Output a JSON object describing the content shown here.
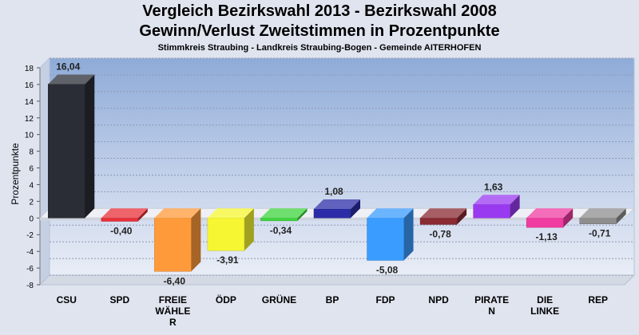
{
  "chart_data": {
    "type": "bar",
    "title": "Vergleich Bezirkswahl 2013 - Bezirkswahl 2008",
    "subtitle": "Gewinn/Verlust Zweitstimmen in Prozentpunkte",
    "caption": "Stimmkreis Straubing - Landkreis Straubing-Bogen - Gemeinde AITERHOFEN",
    "ylabel": "Prozentpunkte",
    "xlabel": "",
    "ylim": [
      -8,
      18
    ],
    "yticks": [
      -8,
      -6,
      -4,
      -2,
      0,
      2,
      4,
      6,
      8,
      10,
      12,
      14,
      16,
      18
    ],
    "categories": [
      "CSU",
      "SPD",
      "FREIE WÄHLER",
      "ÖDP",
      "GRÜNE",
      "BP",
      "FDP",
      "NPD",
      "PIRATEN",
      "DIE LINKE",
      "REP"
    ],
    "category_label_lines": [
      [
        "CSU"
      ],
      [
        "SPD"
      ],
      [
        "FREIE",
        "WÄHLE",
        "R"
      ],
      [
        "ÖDP"
      ],
      [
        "GRÜNE"
      ],
      [
        "BP"
      ],
      [
        "FDP"
      ],
      [
        "NPD"
      ],
      [
        "PIRATE",
        "N"
      ],
      [
        "DIE",
        "LINKE"
      ],
      [
        "REP"
      ]
    ],
    "values": [
      16.04,
      -0.4,
      -6.4,
      -3.91,
      -0.34,
      1.08,
      -5.08,
      -0.78,
      1.63,
      -1.13,
      -0.71
    ],
    "value_labels": [
      "16,04",
      "-0,40",
      "-6,40",
      "-3,91",
      "-0,34",
      "1,08",
      "-5,08",
      "-0,78",
      "1,63",
      "-1,13",
      "-0,71"
    ],
    "colors": [
      "#2a2d36",
      "#e8303a",
      "#ff9a3a",
      "#f6f632",
      "#3ed43e",
      "#2c2ca8",
      "#3a9cff",
      "#8a2a33",
      "#9a3af0",
      "#f03ca0",
      "#8e8e8e"
    ],
    "grid": true
  }
}
